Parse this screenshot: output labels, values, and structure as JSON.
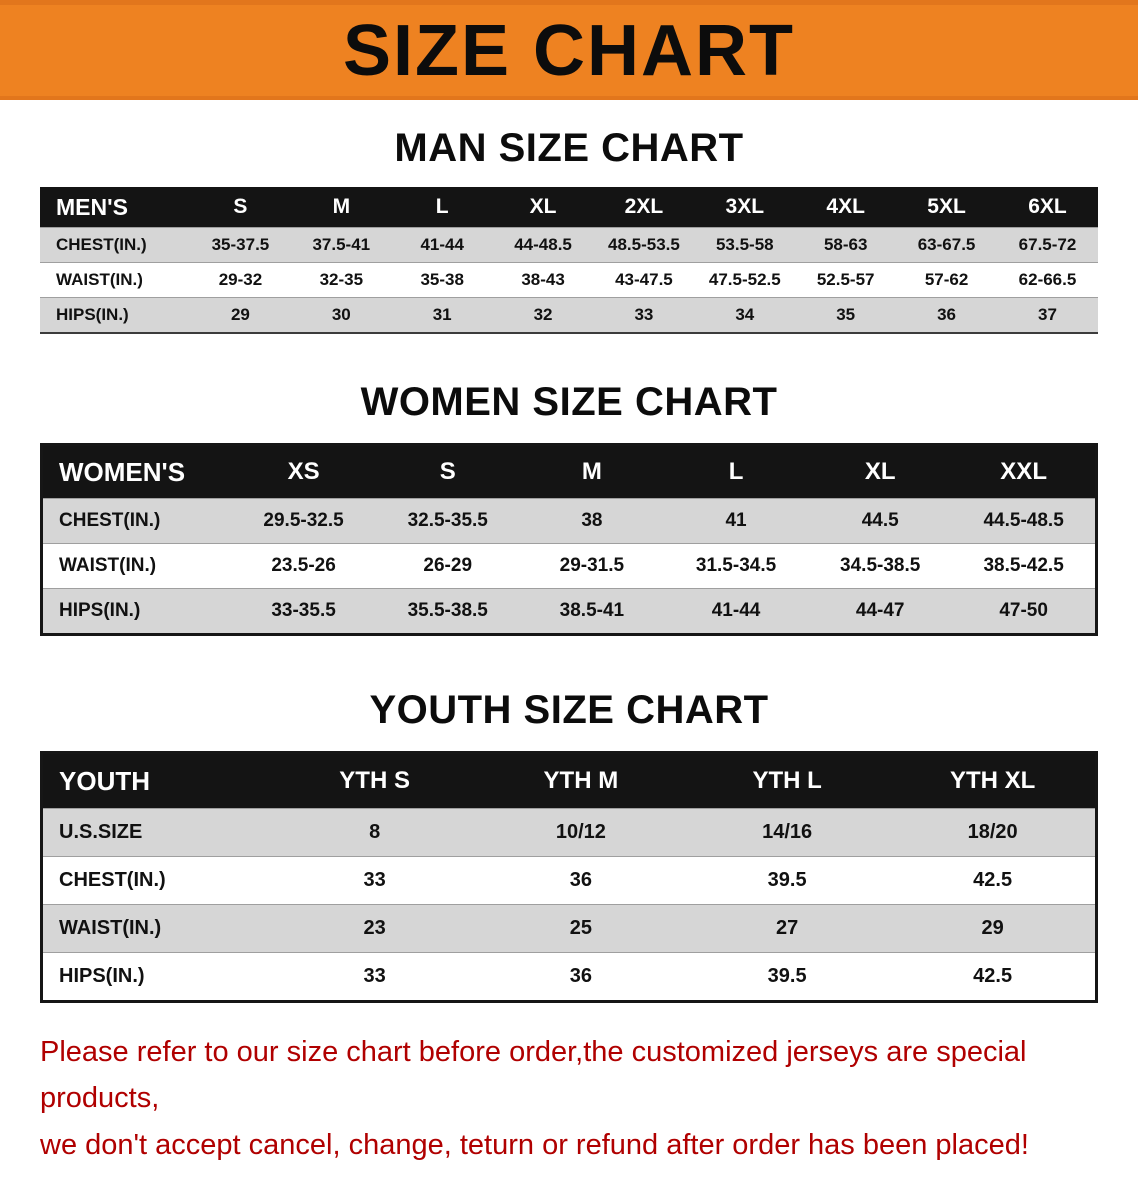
{
  "banner": {
    "title": "SIZE CHART"
  },
  "colors": {
    "banner_bg": "#ee8221",
    "table_header_bg": "#141414",
    "row_alt_bg": "#d6d6d6",
    "disclaimer_text": "#b00000"
  },
  "men": {
    "heading": "MAN SIZE CHART",
    "header": [
      "MEN'S",
      "S",
      "M",
      "L",
      "XL",
      "2XL",
      "3XL",
      "4XL",
      "5XL",
      "6XL"
    ],
    "rows": [
      {
        "label": "CHEST(IN.)",
        "values": [
          "35-37.5",
          "37.5-41",
          "41-44",
          "44-48.5",
          "48.5-53.5",
          "53.5-58",
          "58-63",
          "63-67.5",
          "67.5-72"
        ]
      },
      {
        "label": "WAIST(IN.)",
        "values": [
          "29-32",
          "32-35",
          "35-38",
          "38-43",
          "43-47.5",
          "47.5-52.5",
          "52.5-57",
          "57-62",
          "62-66.5"
        ]
      },
      {
        "label": "HIPS(IN.)",
        "values": [
          "29",
          "30",
          "31",
          "32",
          "33",
          "34",
          "35",
          "36",
          "37"
        ]
      }
    ]
  },
  "women": {
    "heading": "WOMEN SIZE CHART",
    "header": [
      "WOMEN'S",
      "XS",
      "S",
      "M",
      "L",
      "XL",
      "XXL"
    ],
    "rows": [
      {
        "label": "CHEST(IN.)",
        "values": [
          "29.5-32.5",
          "32.5-35.5",
          "38",
          "41",
          "44.5",
          "44.5-48.5"
        ]
      },
      {
        "label": "WAIST(IN.)",
        "values": [
          "23.5-26",
          "26-29",
          "29-31.5",
          "31.5-34.5",
          "34.5-38.5",
          "38.5-42.5"
        ]
      },
      {
        "label": "HIPS(IN.)",
        "values": [
          "33-35.5",
          "35.5-38.5",
          "38.5-41",
          "41-44",
          "44-47",
          "47-50"
        ]
      }
    ]
  },
  "youth": {
    "heading": "YOUTH SIZE CHART",
    "header": [
      "YOUTH",
      "YTH S",
      "YTH M",
      "YTH L",
      "YTH XL"
    ],
    "rows": [
      {
        "label": "U.S.SIZE",
        "values": [
          "8",
          "10/12",
          "14/16",
          "18/20"
        ]
      },
      {
        "label": "CHEST(IN.)",
        "values": [
          "33",
          "36",
          "39.5",
          "42.5"
        ]
      },
      {
        "label": "WAIST(IN.)",
        "values": [
          "23",
          "25",
          "27",
          "29"
        ]
      },
      {
        "label": "HIPS(IN.)",
        "values": [
          "33",
          "36",
          "39.5",
          "42.5"
        ]
      }
    ]
  },
  "footer": {
    "line1": "Please refer to our size chart before order,the customized jerseys are special products,",
    "line2": "we don't accept cancel, change, teturn or refund after order has been placed!"
  }
}
